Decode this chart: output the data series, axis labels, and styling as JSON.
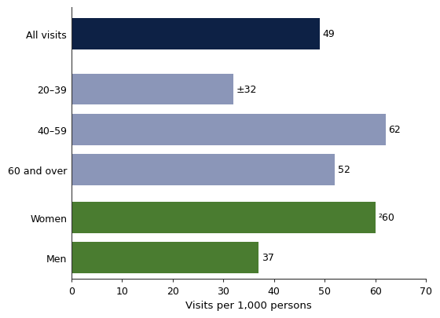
{
  "categories": [
    "Men",
    "Women",
    "60 and over",
    "40–59",
    "20–39",
    "All visits"
  ],
  "values": [
    37,
    60,
    52,
    62,
    32,
    49
  ],
  "colors": [
    "#4a7c30",
    "#4a7c30",
    "#8b96b8",
    "#8b96b8",
    "#8b96b8",
    "#0d2145"
  ],
  "labels": [
    "37",
    "²60",
    "52",
    "62",
    "±32",
    "49"
  ],
  "xlabel": "Visits per 1,000 persons",
  "xlim": [
    0,
    70
  ],
  "xticks": [
    0,
    10,
    20,
    30,
    40,
    50,
    60,
    70
  ],
  "background_color": "#ffffff",
  "label_fontsize": 9,
  "tick_fontsize": 9,
  "xlabel_fontsize": 9.5
}
